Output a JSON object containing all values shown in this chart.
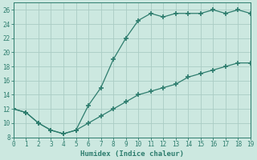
{
  "xlabel": "Humidex (Indice chaleur)",
  "x_upper": [
    0,
    1,
    2,
    3,
    4,
    5,
    6,
    7,
    8,
    9,
    10,
    11,
    12,
    13,
    14,
    15,
    16,
    17,
    18,
    19
  ],
  "y_upper": [
    12,
    11.5,
    10.0,
    9.0,
    8.5,
    9.0,
    12.5,
    15.0,
    19.0,
    22.0,
    24.5,
    25.5,
    25.0,
    25.5,
    25.5,
    25.5,
    26.0,
    25.5,
    26.0,
    25.5
  ],
  "x_lower": [
    0,
    1,
    2,
    3,
    4,
    5,
    6,
    7,
    8,
    9,
    10,
    11,
    12,
    13,
    14,
    15,
    16,
    17,
    18,
    19
  ],
  "y_lower": [
    12,
    11.5,
    10.0,
    9.0,
    8.5,
    9.0,
    10.0,
    11.0,
    12.0,
    13.0,
    14.0,
    14.5,
    15.0,
    15.5,
    16.5,
    17.0,
    17.5,
    18.0,
    18.5,
    18.5
  ],
  "line_color": "#2e7d6e",
  "bg_color": "#cce8e0",
  "grid_color": "#aaccc4",
  "ylim": [
    8,
    27
  ],
  "xlim": [
    0,
    19
  ],
  "yticks": [
    8,
    10,
    12,
    14,
    16,
    18,
    20,
    22,
    24,
    26
  ],
  "xticks": [
    0,
    1,
    2,
    3,
    4,
    5,
    6,
    7,
    8,
    9,
    10,
    11,
    12,
    13,
    14,
    15,
    16,
    17,
    18,
    19
  ]
}
